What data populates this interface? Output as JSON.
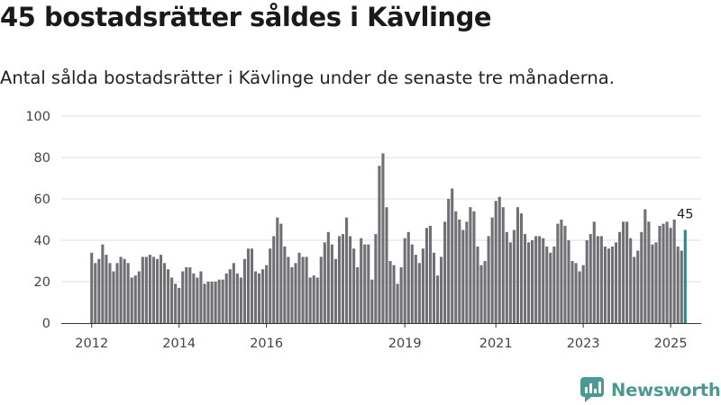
{
  "title": "45 bostadsrätter såldes i Kävlinge",
  "subtitle": "Antal sålda bostadsrätter i Kävlinge under de senaste tre månaderna.",
  "brand": "Newsworthy",
  "colors": {
    "bar": "#706f74",
    "highlight": "#1a8f8f",
    "brand": "#4a9a91"
  },
  "chart_data": {
    "type": "bar",
    "title": "45 bostadsrätter såldes i Kävlinge",
    "xlabel": "",
    "ylabel": "",
    "ylim": [
      0,
      100
    ],
    "yticks": [
      0,
      20,
      40,
      60,
      80,
      100
    ],
    "grid": true,
    "x_tick_labels": [
      {
        "label": "2012",
        "index": 0
      },
      {
        "label": "2014",
        "index": 24
      },
      {
        "label": "2016",
        "index": 48
      },
      {
        "label": "2019",
        "index": 86
      },
      {
        "label": "2023",
        "index": 135
      },
      {
        "label": "2025",
        "index": 159
      },
      {
        "label": "2021",
        "index": 111
      }
    ],
    "series": [
      {
        "name": "Sålda bostadsrätter",
        "start": "2012-01",
        "frequency": "monthly",
        "values": [
          34,
          29,
          31,
          38,
          33,
          29,
          25,
          29,
          32,
          31,
          29,
          22,
          23,
          25,
          32,
          32,
          33,
          32,
          31,
          33,
          29,
          26,
          22,
          19,
          17,
          25,
          27,
          27,
          24,
          22,
          25,
          19,
          20,
          20,
          20,
          21,
          21,
          24,
          26,
          29,
          24,
          22,
          31,
          36,
          36,
          25,
          24,
          26,
          28,
          36,
          42,
          51,
          48,
          37,
          32,
          27,
          29,
          34,
          32,
          32,
          22,
          23,
          22,
          32,
          39,
          44,
          38,
          31,
          42,
          43,
          51,
          42,
          36,
          27,
          41,
          38,
          38,
          21,
          43,
          76,
          82,
          56,
          30,
          28,
          19,
          27,
          41,
          44,
          38,
          33,
          29,
          36,
          46,
          47,
          34,
          23,
          32,
          49,
          60,
          65,
          54,
          50,
          45,
          49,
          56,
          54,
          37,
          28,
          30,
          42,
          51,
          59,
          61,
          56,
          44,
          39,
          45,
          56,
          53,
          43,
          39,
          40,
          42,
          42,
          41,
          37,
          34,
          37,
          48,
          50,
          47,
          40,
          30,
          29,
          25,
          28,
          40,
          43,
          49,
          42,
          42,
          37,
          36,
          37,
          39,
          44,
          49,
          49,
          41,
          32,
          35,
          44,
          55,
          49,
          38,
          39,
          47,
          48,
          49,
          46,
          50,
          37,
          35,
          45
        ],
        "highlight_last": true,
        "highlight_label": "45"
      }
    ]
  }
}
